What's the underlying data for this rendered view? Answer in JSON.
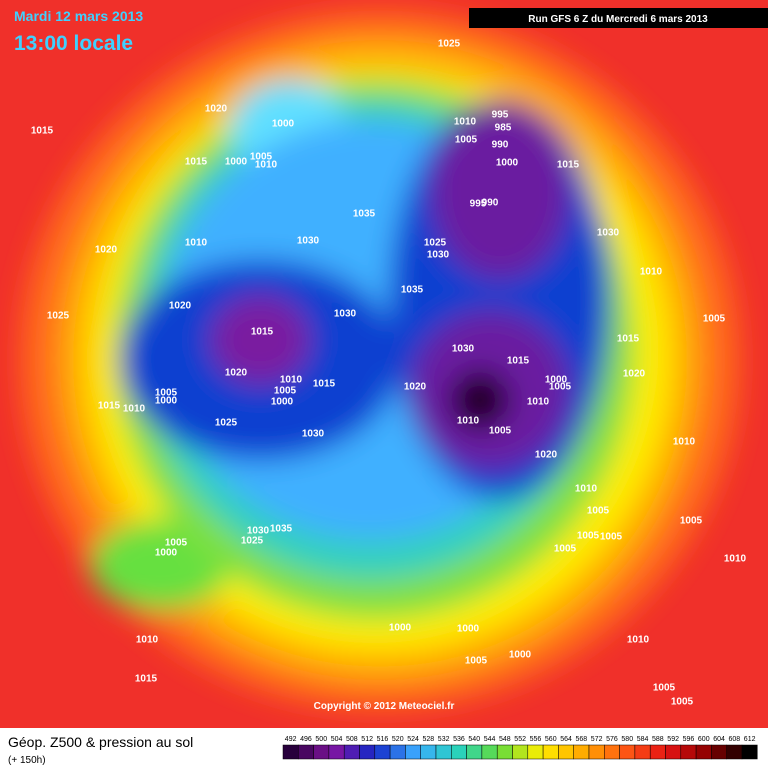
{
  "header": {
    "date": "Mardi 12 mars 2013",
    "time": "13:00 locale",
    "run": "Run GFS 6 Z du Mercredi 6 mars 2013"
  },
  "footer": {
    "title": "Géop. Z500 & pression au sol",
    "lead": "(+ 150h)",
    "copyright": "Copyright © 2012 Meteociel.fr"
  },
  "legend": {
    "values": [
      492,
      496,
      500,
      504,
      508,
      512,
      516,
      520,
      524,
      528,
      532,
      536,
      540,
      544,
      548,
      552,
      556,
      560,
      564,
      568,
      572,
      576,
      580,
      584,
      588,
      592,
      596,
      600,
      604,
      608,
      612
    ]
  },
  "pressure_labels": [
    1025,
    1020,
    1000,
    1015,
    1015,
    1000,
    1005,
    1010,
    995,
    985,
    1010,
    990,
    1005,
    1000,
    1015,
    995,
    990,
    1035,
    1010,
    1030,
    1025,
    1030,
    1030,
    1020,
    1010,
    1035,
    1025,
    1020,
    1030,
    1005,
    1015,
    1015,
    1030,
    1015,
    1020,
    1010,
    1000,
    1005,
    1020,
    1005,
    1015,
    1020,
    1000,
    1005,
    1000,
    1010,
    1015,
    1010,
    1010,
    1025,
    1005,
    1030,
    1010,
    1020,
    1010,
    1005,
    1005,
    1005,
    1000,
    1030,
    1035,
    1025,
    1005,
    1005,
    1005,
    1010,
    1010,
    1000,
    1000,
    1010,
    1005,
    1000,
    1015,
    1005,
    1005
  ]
}
